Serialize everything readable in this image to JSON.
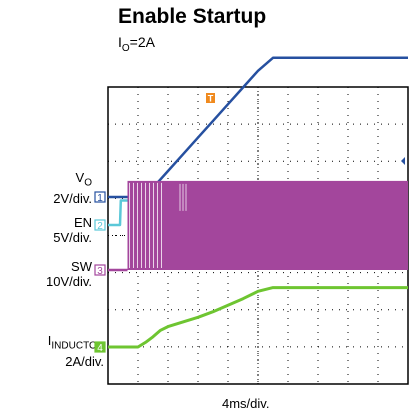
{
  "title": "Enable Startup",
  "subtitle": {
    "base": "I",
    "sub": "O",
    "rest": "=2A"
  },
  "xlabel": "4ms/div.",
  "chart_data": {
    "type": "line",
    "title": "Enable Startup",
    "xlabel": "4ms/div.",
    "x_unit": "ms",
    "xlim": [
      0,
      40
    ],
    "grid": true,
    "grid_divisions": {
      "x": 10,
      "y": 8
    },
    "trigger_marker": "T",
    "series": [
      {
        "name": "V_O",
        "label": {
          "base": "V",
          "sub": "O",
          "scale": "2V/div."
        },
        "channel": "1",
        "unit": "V",
        "color": "#2650a0",
        "x": [
          0,
          4.8,
          6,
          8,
          10,
          12,
          14,
          16,
          18,
          20,
          22,
          24,
          26,
          28,
          30,
          32,
          34,
          36,
          38,
          40
        ],
        "y": [
          0,
          0,
          0.5,
          1.4,
          2.3,
          3.2,
          4.1,
          5.0,
          5.9,
          6.8,
          7.5,
          7.5,
          7.5,
          7.5,
          7.5,
          7.5,
          7.5,
          7.5,
          7.5,
          7.5
        ]
      },
      {
        "name": "EN",
        "label": {
          "base": "EN",
          "sub": "",
          "scale": "5V/div."
        },
        "channel": "2",
        "unit": "V",
        "color": "#5bc8d8",
        "x": [
          0,
          1.6,
          1.7,
          40
        ],
        "y": [
          0,
          0,
          3.3,
          3.3
        ]
      },
      {
        "name": "SW",
        "label": {
          "base": "SW",
          "sub": "",
          "scale": "10V/div."
        },
        "channel": "3",
        "unit": "V",
        "color": "#a3469c",
        "switching_start_ms": 2.6,
        "switching_high_v": 24,
        "switching_low_v": 0
      },
      {
        "name": "I_INDUCTOR",
        "label": {
          "base": "I",
          "sub": "INDUCTOR",
          "scale": "2A/div."
        },
        "channel": "4",
        "unit": "A",
        "color": "#6ec531",
        "x": [
          0,
          2,
          4,
          5,
          6,
          7,
          8,
          10,
          12,
          14,
          16,
          18,
          20,
          22,
          24,
          26,
          28,
          30,
          32,
          34,
          36,
          38,
          40
        ],
        "y": [
          0,
          0,
          0,
          0.25,
          0.55,
          0.9,
          1.1,
          1.35,
          1.6,
          1.9,
          2.25,
          2.6,
          3.0,
          3.2,
          3.2,
          3.2,
          3.2,
          3.2,
          3.2,
          3.2,
          3.2,
          3.2,
          3.2
        ]
      }
    ]
  }
}
